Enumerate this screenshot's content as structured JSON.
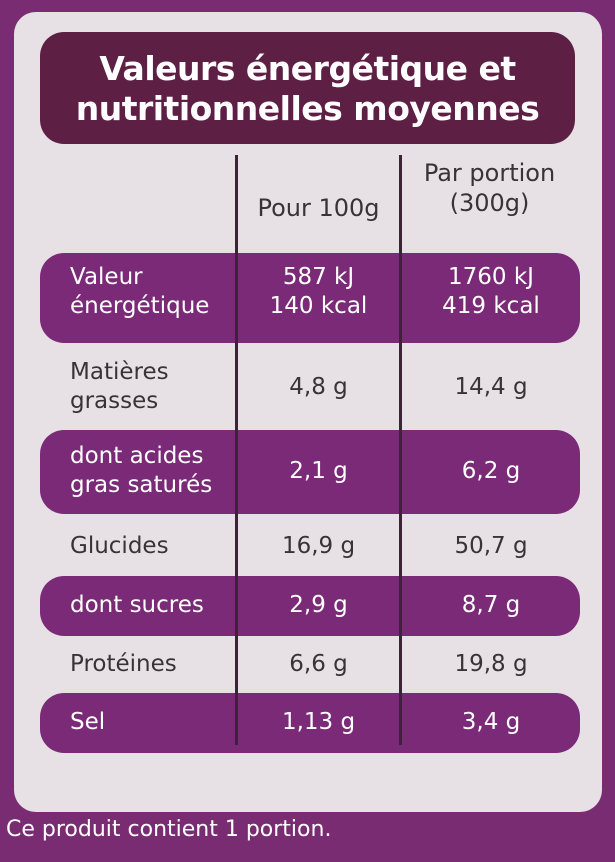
{
  "title": {
    "line1": "Valeurs énergétique et",
    "line2": "nutritionnelles moyennes"
  },
  "columns": {
    "per100": "Pour 100g",
    "portion_line1": "Par portion",
    "portion_line2": "(300g)"
  },
  "rows": [
    {
      "name1": "Valeur",
      "name2": "énergétique",
      "v100_1": "587 kJ",
      "v100_2": "140 kcal",
      "vpor_1": "1760 kJ",
      "vpor_2": "419 kcal"
    },
    {
      "name1": "Matières",
      "name2": "grasses",
      "v100": "4,8 g",
      "vpor": "14,4 g"
    },
    {
      "name1": "dont acides",
      "name2": "gras saturés",
      "v100": "2,1 g",
      "vpor": "6,2 g"
    },
    {
      "name": "Glucides",
      "v100": "16,9 g",
      "vpor": "50,7 g"
    },
    {
      "name": "dont sucres",
      "v100": "2,9 g",
      "vpor": "8,7 g"
    },
    {
      "name": "Protéines",
      "v100": "6,6 g",
      "vpor": "19,8 g"
    },
    {
      "name": "Sel",
      "v100": "1,13 g",
      "vpor": "3,4 g"
    }
  ],
  "footer": "Ce produit contient 1 portion.",
  "colors": {
    "background": "#7a2c72",
    "card": "#e7e1e6",
    "title_box": "#5e1f45",
    "band": "#7b2a77"
  }
}
